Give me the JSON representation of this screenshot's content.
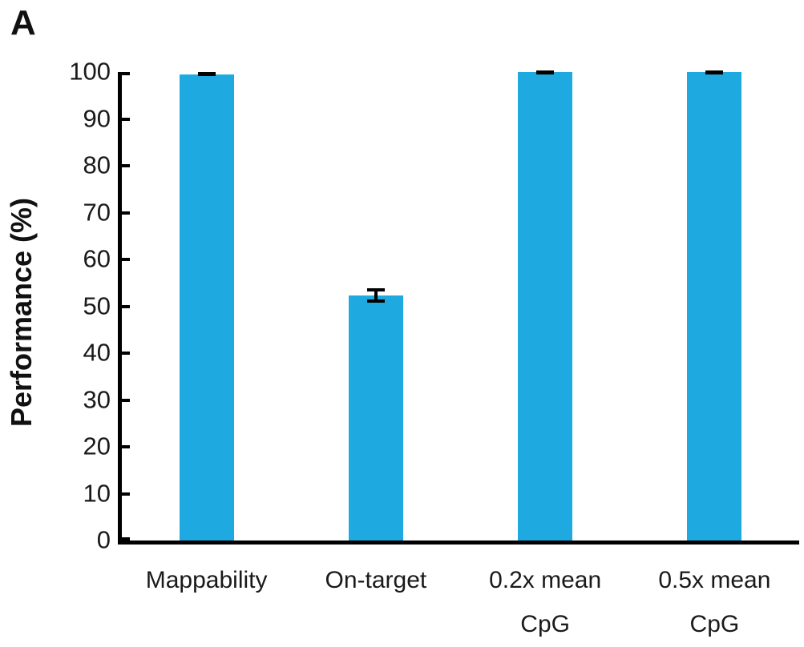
{
  "panel_label": "A",
  "colors": {
    "bar": "#1FA9E1",
    "axis": "#000000",
    "text": "#1a1a1a",
    "error": "#000000",
    "background": "#ffffff"
  },
  "chart_data": {
    "type": "bar",
    "title": "",
    "categories": [
      "Mappability",
      "On-target",
      "0.2x mean CpG",
      "0.5x mean CpG"
    ],
    "category_lines": [
      [
        "Mappability"
      ],
      [
        "On-target"
      ],
      [
        "0.2x mean",
        "CpG"
      ],
      [
        "0.5x mean",
        "CpG"
      ]
    ],
    "values": [
      99.5,
      52.3,
      100,
      100
    ],
    "errors": [
      0.3,
      0.8,
      0.2,
      0.2
    ],
    "xlabel": "",
    "ylabel": "Performance (%)",
    "ylim": [
      0,
      100
    ],
    "yticks": [
      0,
      10,
      20,
      30,
      40,
      50,
      60,
      70,
      80,
      90,
      100
    ],
    "grid": false,
    "legend": null,
    "bar_color": "#1FA9E1",
    "error_color": "#000000"
  }
}
